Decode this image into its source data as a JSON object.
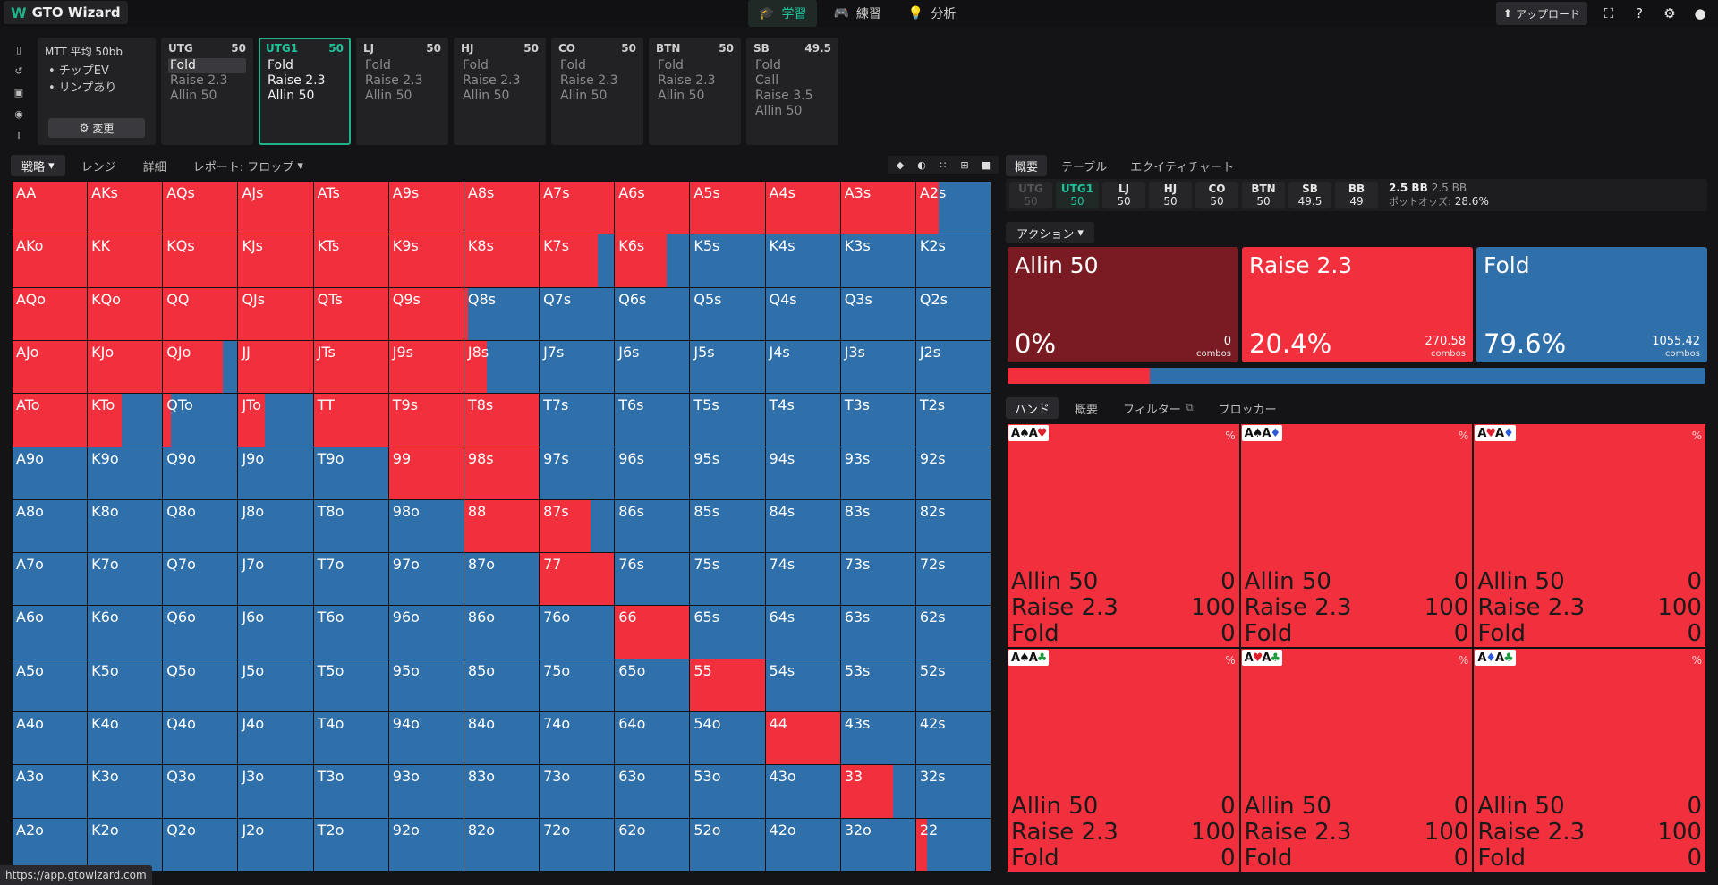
{
  "app": {
    "logo_mark": "W",
    "name": "GTO Wizard",
    "status_url": "https://app.gtowizard.com"
  },
  "nav": [
    {
      "label": "学習",
      "icon": "graduation-cap-icon",
      "active": true
    },
    {
      "label": "練習",
      "icon": "gamepad-icon",
      "active": false
    },
    {
      "label": "分析",
      "icon": "lightbulb-icon",
      "active": false
    }
  ],
  "topbar": {
    "upload_label": "アップロード"
  },
  "mtt": {
    "title": "MTT 平均 50bb",
    "bullets": [
      "• チップEV",
      "• リンプあり"
    ],
    "change_label": "変更"
  },
  "positions": [
    {
      "name": "UTG",
      "stack": "50",
      "actions": [
        "Fold",
        "Raise 2.3",
        "Allin 50"
      ],
      "selected": 0,
      "active": false
    },
    {
      "name": "UTG1",
      "stack": "50",
      "actions": [
        "Fold",
        "Raise 2.3",
        "Allin 50"
      ],
      "selected": -1,
      "active": true
    },
    {
      "name": "LJ",
      "stack": "50",
      "actions": [
        "Fold",
        "Raise 2.3",
        "Allin 50"
      ],
      "selected": -1,
      "active": false
    },
    {
      "name": "HJ",
      "stack": "50",
      "actions": [
        "Fold",
        "Raise 2.3",
        "Allin 50"
      ],
      "selected": -1,
      "active": false
    },
    {
      "name": "CO",
      "stack": "50",
      "actions": [
        "Fold",
        "Raise 2.3",
        "Allin 50"
      ],
      "selected": -1,
      "active": false
    },
    {
      "name": "BTN",
      "stack": "50",
      "actions": [
        "Fold",
        "Raise 2.3",
        "Allin 50"
      ],
      "selected": -1,
      "active": false
    },
    {
      "name": "SB",
      "stack": "49.5",
      "actions": [
        "Fold",
        "Call",
        "Raise 3.5",
        "Allin 50"
      ],
      "selected": -1,
      "active": false
    }
  ],
  "grid_tabs": [
    "戦略",
    "レンジ",
    "詳細",
    "レポート: フロップ"
  ],
  "colors": {
    "raise": "#f2303d",
    "fold": "#2f6faa",
    "allin": "#7a1a22",
    "accent": "#1fb38a"
  },
  "grid": {
    "ranks": [
      "A",
      "K",
      "Q",
      "J",
      "T",
      "9",
      "8",
      "7",
      "6",
      "5",
      "4",
      "3",
      "2"
    ],
    "raise_freq_rows": [
      [
        1,
        1,
        1,
        1,
        1,
        1,
        1,
        1,
        1,
        1,
        1,
        1,
        0.3
      ],
      [
        1,
        1,
        1,
        1,
        1,
        1,
        1,
        0.78,
        0.7,
        0,
        0,
        0,
        0
      ],
      [
        1,
        1,
        1,
        1,
        1,
        1,
        0.05,
        0,
        0,
        0,
        0,
        0,
        0
      ],
      [
        1,
        1,
        0.8,
        1,
        1,
        1,
        0.3,
        0,
        0,
        0,
        0,
        0,
        0
      ],
      [
        1,
        0.45,
        0.1,
        0.35,
        1,
        1,
        1,
        0,
        0,
        0,
        0,
        0,
        0
      ],
      [
        0,
        0,
        0,
        0,
        0,
        1,
        1,
        0,
        0,
        0,
        0,
        0,
        0
      ],
      [
        0,
        0,
        0,
        0,
        0,
        0,
        1,
        0.68,
        0,
        0,
        0,
        0,
        0
      ],
      [
        0,
        0,
        0,
        0,
        0,
        0,
        0,
        1,
        0,
        0,
        0,
        0,
        0
      ],
      [
        0,
        0,
        0,
        0,
        0,
        0,
        0,
        0,
        1,
        0,
        0,
        0,
        0
      ],
      [
        0,
        0,
        0,
        0,
        0,
        0,
        0,
        0,
        0,
        1,
        0,
        0,
        0
      ],
      [
        0,
        0,
        0,
        0,
        0,
        0,
        0,
        0,
        0,
        0,
        1,
        0,
        0
      ],
      [
        0,
        0,
        0,
        0,
        0,
        0,
        0,
        0,
        0,
        0,
        0,
        0.7,
        0
      ],
      [
        0,
        0,
        0,
        0,
        0,
        0,
        0,
        0,
        0,
        0,
        0,
        0,
        0.15
      ]
    ]
  },
  "right_tabs": [
    "概要",
    "テーブル",
    "エクイティチャート"
  ],
  "seats": [
    {
      "name": "UTG",
      "stack": "50",
      "state": "folded"
    },
    {
      "name": "UTG1",
      "stack": "50",
      "state": "active"
    },
    {
      "name": "LJ",
      "stack": "50",
      "state": "normal"
    },
    {
      "name": "HJ",
      "stack": "50",
      "state": "normal"
    },
    {
      "name": "CO",
      "stack": "50",
      "state": "normal"
    },
    {
      "name": "BTN",
      "stack": "50",
      "state": "normal"
    },
    {
      "name": "SB",
      "stack": "49.5",
      "state": "normal"
    },
    {
      "name": "BB",
      "stack": "49",
      "state": "normal"
    }
  ],
  "pot": {
    "pot_bb": "2.5 BB",
    "pot_bb2": "2.5 BB",
    "odds_label": "ポットオッズ:",
    "odds_value": "28.6%"
  },
  "action_tab": "アクション",
  "actions": [
    {
      "name": "Allin 50",
      "pct": "0%",
      "combos": "0",
      "unit": "combos",
      "color": "#7a1a22"
    },
    {
      "name": "Raise 2.3",
      "pct": "20.4%",
      "combos": "270.58",
      "unit": "combos",
      "color": "#f2303d"
    },
    {
      "name": "Fold",
      "pct": "79.6%",
      "combos": "1055.42",
      "unit": "combos",
      "color": "#2f6faa"
    }
  ],
  "hand_tabs": [
    "ハンド",
    "概要",
    "フィルター",
    "ブロッカー"
  ],
  "combos": [
    {
      "cards": [
        [
          "A",
          "s"
        ],
        [
          "A",
          "h"
        ]
      ],
      "pct": "%",
      "allin": "0",
      "raise": "100",
      "fold": "0"
    },
    {
      "cards": [
        [
          "A",
          "s"
        ],
        [
          "A",
          "d"
        ]
      ],
      "pct": "%",
      "allin": "0",
      "raise": "100",
      "fold": "0"
    },
    {
      "cards": [
        [
          "A",
          "h"
        ],
        [
          "A",
          "d"
        ]
      ],
      "pct": "%",
      "allin": "0",
      "raise": "100",
      "fold": "0"
    },
    {
      "cards": [
        [
          "A",
          "s"
        ],
        [
          "A",
          "c"
        ]
      ],
      "pct": "%",
      "allin": "0",
      "raise": "100",
      "fold": "0"
    },
    {
      "cards": [
        [
          "A",
          "h"
        ],
        [
          "A",
          "c"
        ]
      ],
      "pct": "%",
      "allin": "0",
      "raise": "100",
      "fold": "0"
    },
    {
      "cards": [
        [
          "A",
          "d"
        ],
        [
          "A",
          "c"
        ]
      ],
      "pct": "%",
      "allin": "0",
      "raise": "100",
      "fold": "0"
    }
  ],
  "combo_labels": {
    "allin": "Allin 50",
    "raise": "Raise 2.3",
    "fold": "Fold"
  }
}
